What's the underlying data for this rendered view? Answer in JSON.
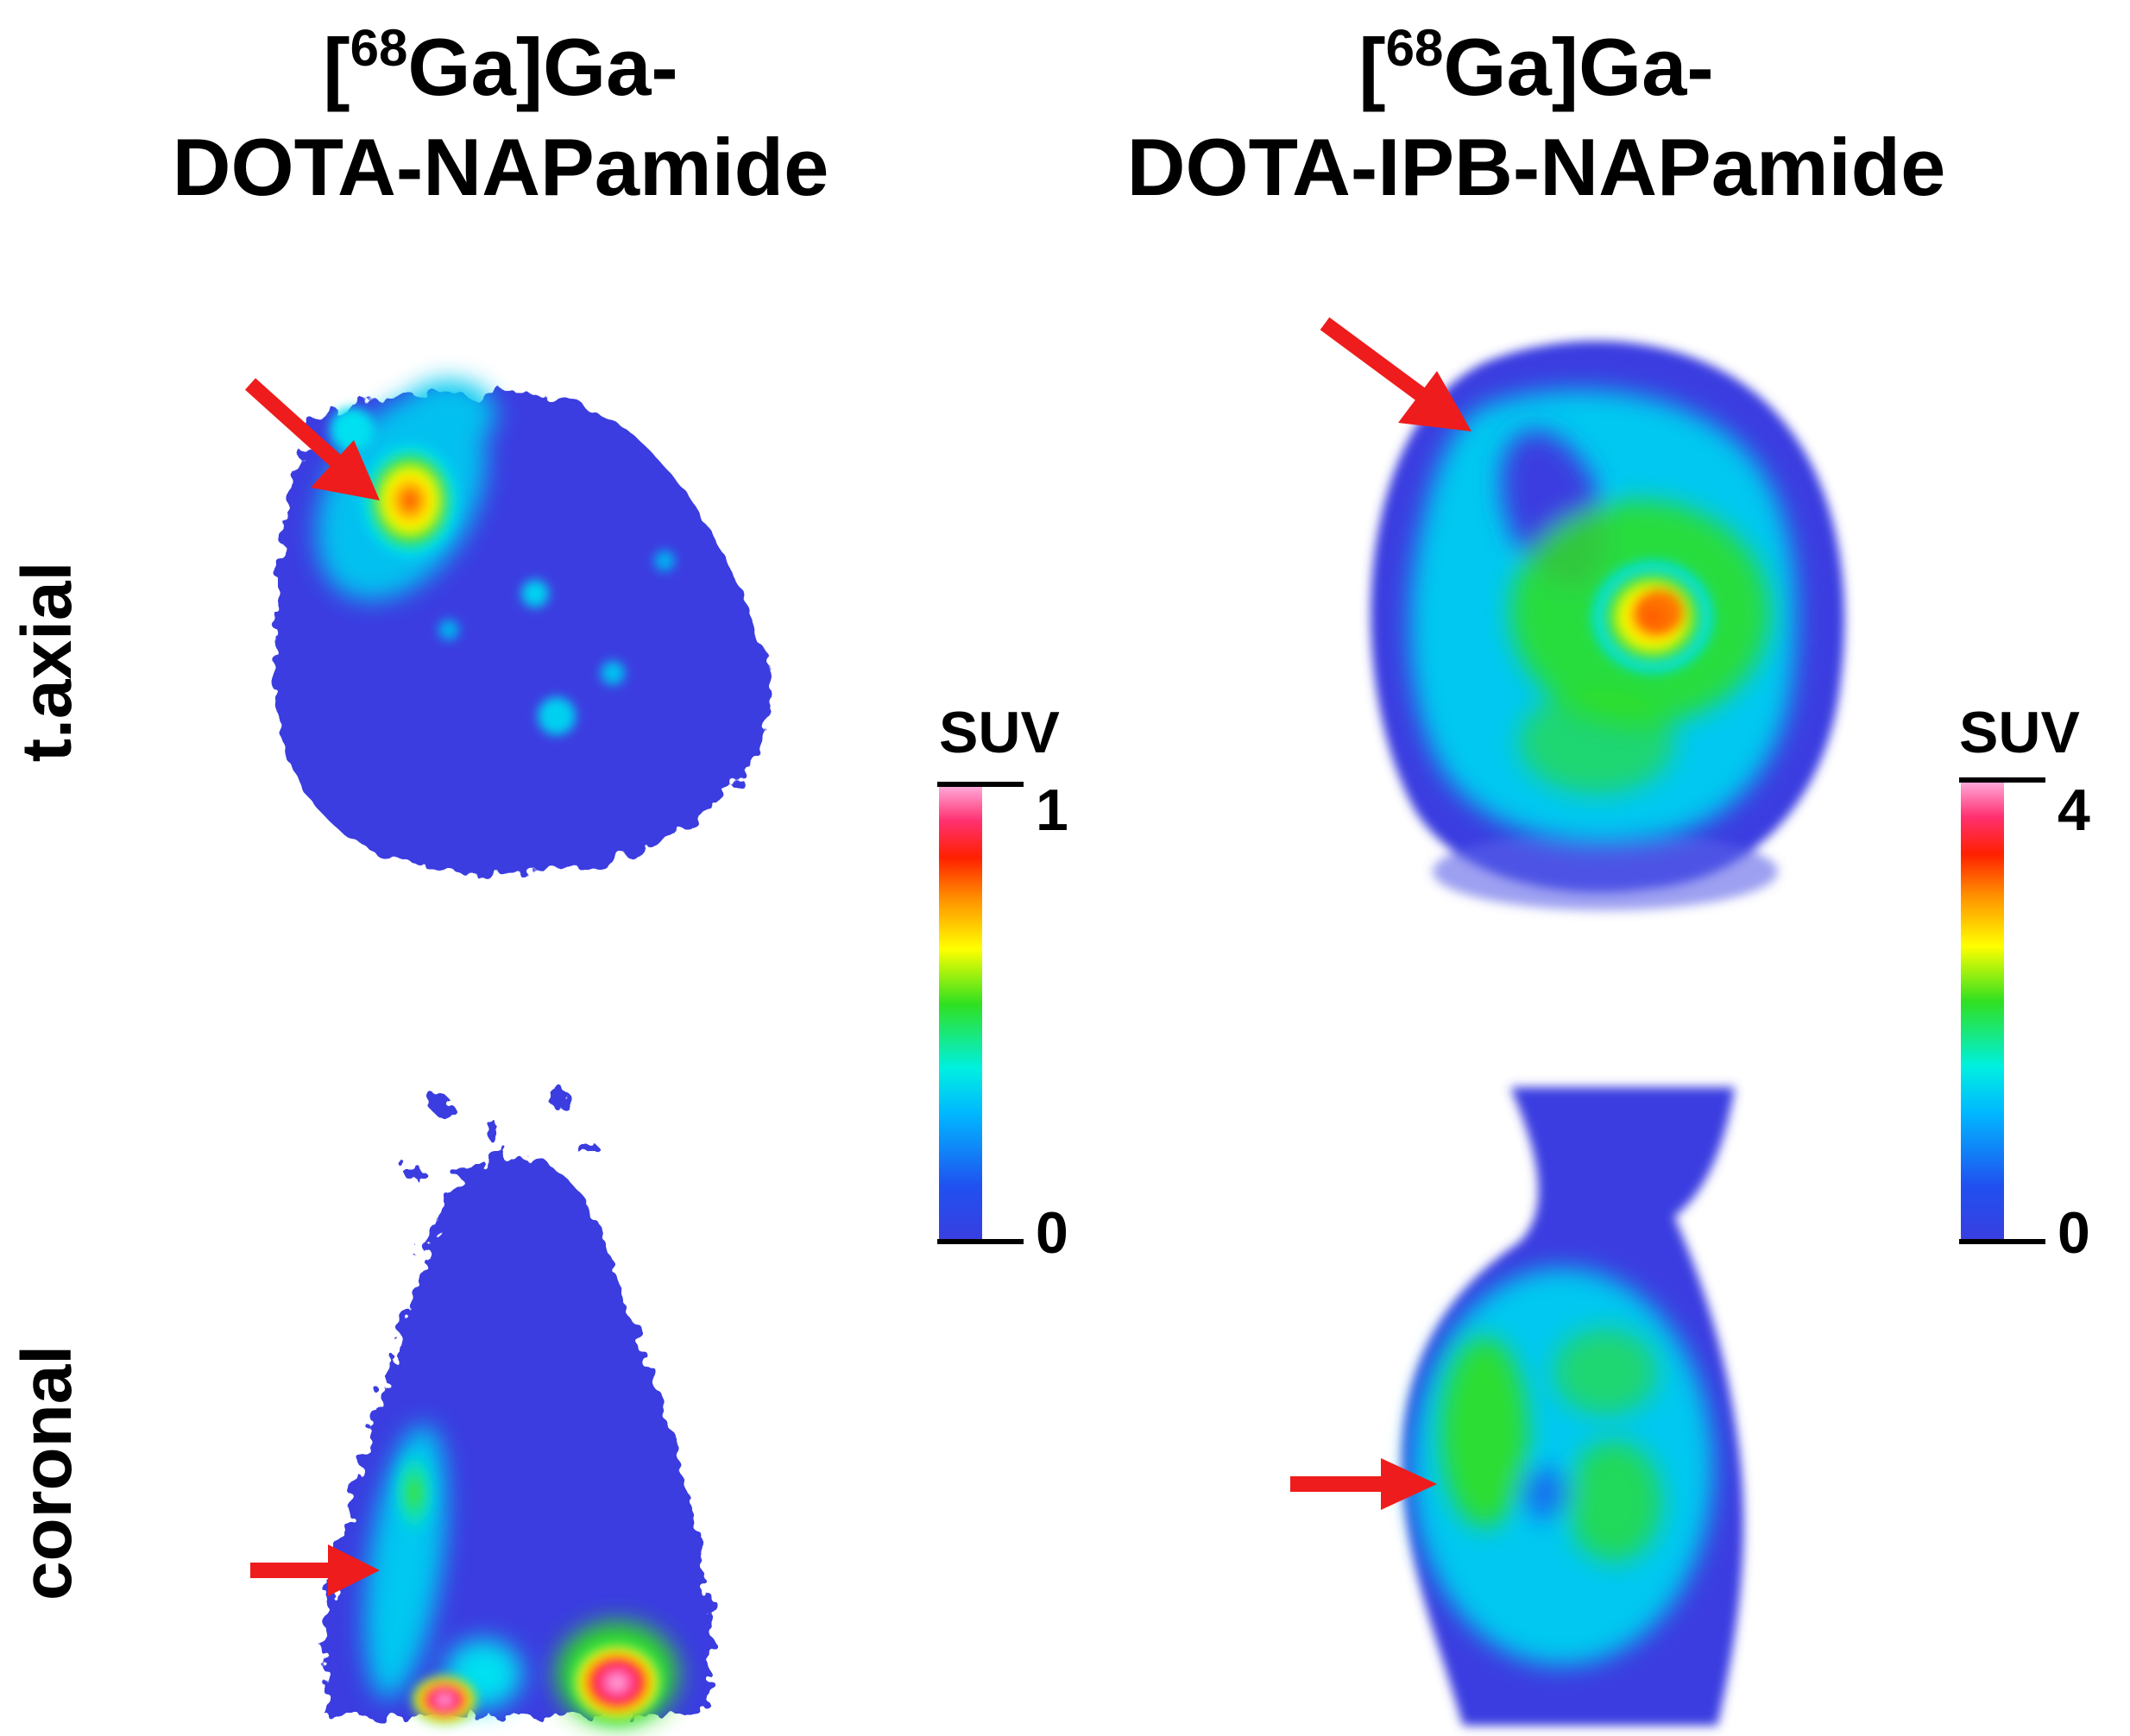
{
  "columns": {
    "left": {
      "title_pre": "[",
      "title_sup": "68",
      "title_l1": "Ga]Ga-",
      "title_l2": "DOTA-NAPamide"
    },
    "right": {
      "title_pre": "[",
      "title_sup": "68",
      "title_l1": "Ga]Ga-",
      "title_l2": "DOTA-IPB-NAPamide"
    }
  },
  "rows": {
    "top": "t.axial",
    "bottom": "coronal"
  },
  "colorbars": {
    "left": {
      "title": "SUV",
      "max": "1",
      "min": "0"
    },
    "right": {
      "title": "SUV",
      "max": "4",
      "min": "0"
    }
  },
  "colors": {
    "arrow": "#ee1c1c",
    "background": "#3a3ee0"
  }
}
